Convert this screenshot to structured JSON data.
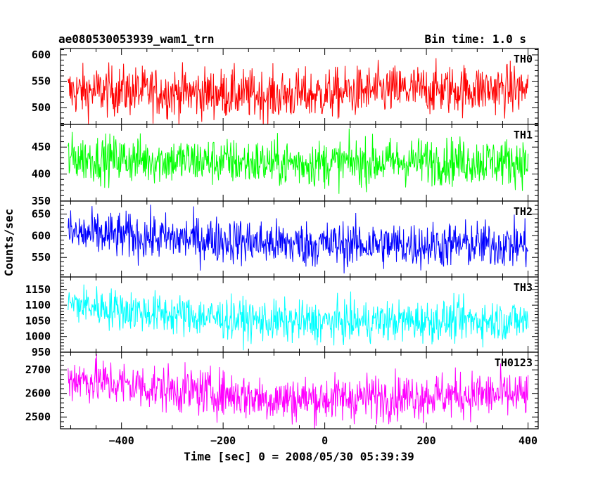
{
  "chart_data": {
    "type": "line",
    "title": "ae080530053939_wam1_trn",
    "subtitle": "Bin time: 1.0 s",
    "xlabel": "Time [sec] 0 = 2008/05/30 05:39:39",
    "ylabel": "Counts/sec",
    "xlim": [
      -520,
      420
    ],
    "x_ticks": [
      -400,
      -200,
      0,
      200,
      400
    ],
    "x_tick_labels": [
      "−400",
      "−200",
      "0",
      "200",
      "400"
    ],
    "x_range": [
      -505,
      400
    ],
    "panels": [
      {
        "name": "TH0",
        "color": "#ff0000",
        "ylim": [
          468,
          612
        ],
        "y_ticks": [
          500,
          550,
          600
        ],
        "y_tick_labels": [
          "500",
          "550",
          "600"
        ],
        "mean": [
          [
            -505,
            530
          ],
          [
            -400,
            532
          ],
          [
            -300,
            528
          ],
          [
            -200,
            527
          ],
          [
            -100,
            523
          ],
          [
            0,
            525
          ],
          [
            100,
            532
          ],
          [
            200,
            534
          ],
          [
            300,
            535
          ],
          [
            400,
            534
          ]
        ],
        "spread": 24
      },
      {
        "name": "TH1",
        "color": "#00ff00",
        "ylim": [
          350,
          492
        ],
        "y_ticks": [
          350,
          400,
          450
        ],
        "y_tick_labels": [
          "350",
          "400",
          "450"
        ],
        "mean": [
          [
            -505,
            430
          ],
          [
            -400,
            428
          ],
          [
            -300,
            425
          ],
          [
            -200,
            423
          ],
          [
            -100,
            420
          ],
          [
            0,
            420
          ],
          [
            100,
            422
          ],
          [
            200,
            424
          ],
          [
            300,
            424
          ],
          [
            400,
            422
          ]
        ],
        "spread": 22
      },
      {
        "name": "TH2",
        "color": "#0000ff",
        "ylim": [
          505,
          680
        ],
        "y_ticks": [
          550,
          600,
          650
        ],
        "y_tick_labels": [
          "550",
          "600",
          "650"
        ],
        "mean": [
          [
            -505,
            605
          ],
          [
            -400,
            600
          ],
          [
            -300,
            594
          ],
          [
            -200,
            590
          ],
          [
            -100,
            582
          ],
          [
            0,
            580
          ],
          [
            100,
            580
          ],
          [
            200,
            578
          ],
          [
            300,
            580
          ],
          [
            400,
            578
          ]
        ],
        "spread": 27
      },
      {
        "name": "TH3",
        "color": "#00ffff",
        "ylim": [
          950,
          1190
        ],
        "y_ticks": [
          950,
          1000,
          1050,
          1100,
          1150
        ],
        "y_tick_labels": [
          "950",
          "1000",
          "1050",
          "1100",
          "1150"
        ],
        "mean": [
          [
            -505,
            1105
          ],
          [
            -400,
            1085
          ],
          [
            -300,
            1070
          ],
          [
            -200,
            1058
          ],
          [
            -100,
            1048
          ],
          [
            0,
            1045
          ],
          [
            100,
            1048
          ],
          [
            200,
            1050
          ],
          [
            300,
            1052
          ],
          [
            400,
            1050
          ]
        ],
        "spread": 33
      },
      {
        "name": "TH0123",
        "color": "#ff00ff",
        "ylim": [
          2450,
          2775
        ],
        "y_ticks": [
          2500,
          2600,
          2700
        ],
        "y_tick_labels": [
          "2500",
          "2600",
          "2700"
        ],
        "mean": [
          [
            -505,
            2665
          ],
          [
            -400,
            2640
          ],
          [
            -300,
            2615
          ],
          [
            -200,
            2600
          ],
          [
            -100,
            2575
          ],
          [
            0,
            2578
          ],
          [
            100,
            2585
          ],
          [
            200,
            2590
          ],
          [
            300,
            2595
          ],
          [
            400,
            2590
          ]
        ],
        "spread": 50
      }
    ]
  }
}
